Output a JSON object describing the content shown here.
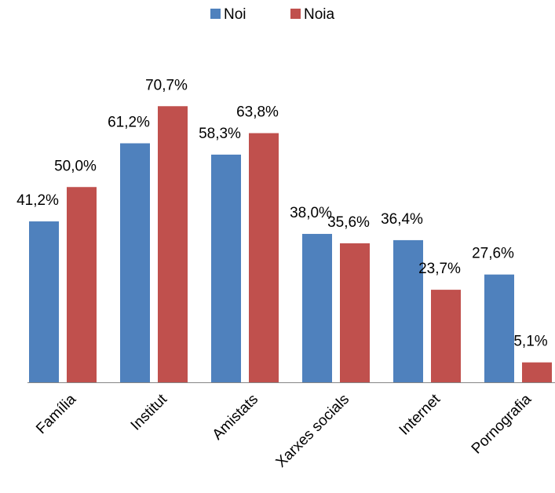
{
  "chart_data": {
    "type": "bar",
    "categories": [
      "Família",
      "Institut",
      "Amistats",
      "Xarxes socials",
      "Internet",
      "Pornografia"
    ],
    "series": [
      {
        "name": "Noi",
        "color": "#4f81bd",
        "values": [
          41.2,
          61.2,
          58.3,
          38.0,
          36.4,
          27.6
        ],
        "value_labels": [
          "41,2%",
          "61,2%",
          "58,3%",
          "38,0%",
          "36,4%",
          "27,6%"
        ]
      },
      {
        "name": "Noia",
        "color": "#c0504d",
        "values": [
          50.0,
          70.7,
          63.8,
          35.6,
          23.7,
          5.1
        ],
        "value_labels": [
          "50,0%",
          "70,7%",
          "63,8%",
          "35,6%",
          "23,7%",
          "5,1%"
        ]
      }
    ],
    "ylim": [
      0,
      80
    ],
    "legend": "top"
  }
}
